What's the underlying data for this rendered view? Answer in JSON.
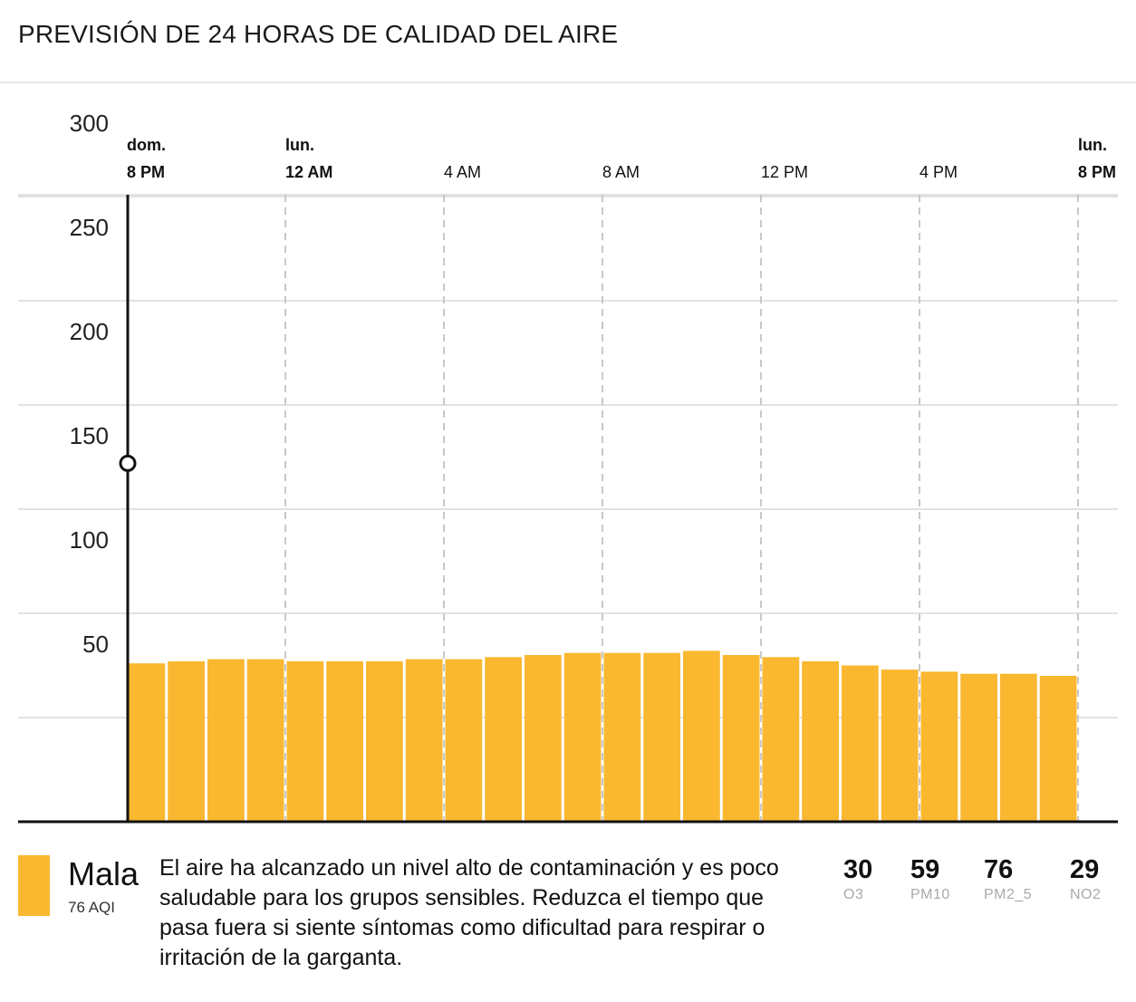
{
  "title": "PREVISIÓN DE 24 HORAS DE CALIDAD DEL AIRE",
  "colors": {
    "bar": "#f9b830",
    "grid": "#e2e2e2",
    "dashed": "#c8c8c8",
    "axis": "#111111",
    "swatch": "#f9b830"
  },
  "chart_data": {
    "type": "bar",
    "y_ticks": [
      "50",
      "100",
      "150",
      "200",
      "250",
      "300"
    ],
    "ylim": [
      0,
      300
    ],
    "x_ticks": [
      {
        "day": "dom.",
        "time": "8 PM",
        "bold": true,
        "hour": 0
      },
      {
        "day": "lun.",
        "time": "12 AM",
        "bold": true,
        "hour": 4
      },
      {
        "day": "",
        "time": "4 AM",
        "bold": false,
        "hour": 8
      },
      {
        "day": "",
        "time": "8 AM",
        "bold": false,
        "hour": 12
      },
      {
        "day": "",
        "time": "12 PM",
        "bold": false,
        "hour": 16
      },
      {
        "day": "",
        "time": "4 PM",
        "bold": false,
        "hour": 20
      },
      {
        "day": "lun.",
        "time": "8 PM",
        "bold": true,
        "hour": 24
      }
    ],
    "values": [
      76,
      77,
      78,
      78,
      77,
      77,
      77,
      78,
      78,
      79,
      80,
      81,
      81,
      81,
      82,
      80,
      79,
      77,
      75,
      73,
      72,
      71,
      71,
      70
    ],
    "current_marker_value": 172,
    "grid": true
  },
  "summary": {
    "category": "Mala",
    "aqi_label": "76 AQI",
    "description": "El aire ha alcanzado un nivel alto de contaminación y es poco saludable para los grupos sensibles. Reduzca el tiempo que pasa fuera si siente síntomas como dificultad para respirar o irritación de la garganta."
  },
  "pollutants": [
    {
      "value": "30",
      "name": "O3"
    },
    {
      "value": "59",
      "name": "PM10"
    },
    {
      "value": "76",
      "name": "PM2_5"
    },
    {
      "value": "29",
      "name": "NO2"
    }
  ]
}
